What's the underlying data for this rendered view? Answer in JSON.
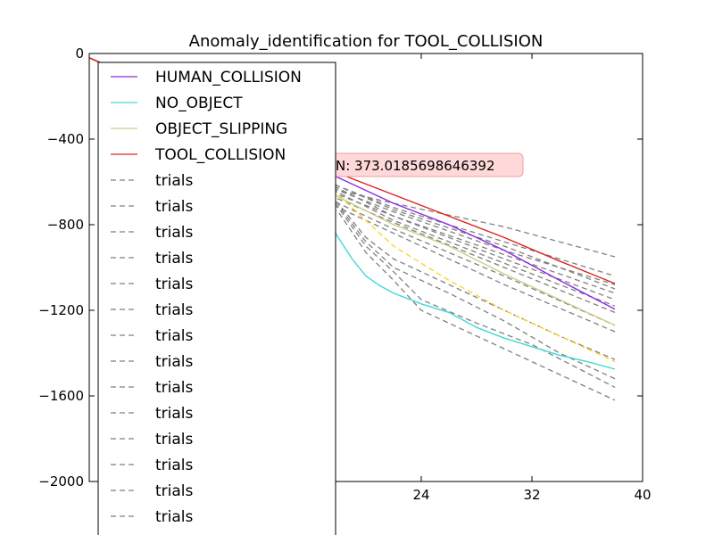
{
  "chart_data": {
    "type": "line",
    "title": "Anomaly_identification for TOOL_COLLISION",
    "xlabel": "",
    "ylabel": "",
    "xlim": [
      0,
      40
    ],
    "ylim": [
      -2000,
      0
    ],
    "xticks": [
      24,
      32,
      40
    ],
    "yticks": [
      0,
      -400,
      -800,
      -1200,
      -1600,
      -2000
    ],
    "grid": false,
    "legend_position": "upper-left",
    "annotation": "N: 373.0185698646392",
    "series": [
      {
        "name": "HUMAN_COLLISION",
        "color": "#8a2be2",
        "dashed": false,
        "x": [
          0,
          2,
          6,
          10,
          14,
          18,
          22,
          26,
          30,
          34,
          38
        ],
        "y": [
          -20,
          -80,
          -200,
          -330,
          -460,
          -580,
          -700,
          -800,
          -920,
          -1060,
          -1195
        ]
      },
      {
        "name": "NO_OBJECT",
        "color": "#40d8d8",
        "dashed": false,
        "x": [
          0,
          2,
          6,
          10,
          14,
          16,
          18,
          19,
          20,
          21,
          22,
          24,
          26,
          28,
          30,
          32,
          34,
          36,
          38
        ],
        "y": [
          -20,
          -80,
          -220,
          -380,
          -550,
          -650,
          -860,
          -960,
          -1040,
          -1085,
          -1120,
          -1170,
          -1210,
          -1280,
          -1330,
          -1370,
          -1410,
          -1440,
          -1475
        ]
      },
      {
        "name": "OBJECT_SLIPPING",
        "color": "#cccc8a",
        "dashed": false,
        "x": [
          0,
          2,
          6,
          10,
          14,
          18,
          22,
          26,
          30,
          34,
          38
        ],
        "y": [
          -20,
          -75,
          -210,
          -360,
          -520,
          -670,
          -800,
          -900,
          -1030,
          -1150,
          -1270
        ]
      },
      {
        "name": "TOOL_COLLISION",
        "color": "#e02020",
        "dashed": false,
        "x": [
          0,
          2,
          6,
          10,
          14,
          18,
          22,
          26,
          30,
          34,
          38
        ],
        "y": [
          -20,
          -75,
          -200,
          -320,
          -440,
          -560,
          -660,
          -760,
          -860,
          -970,
          -1075
        ]
      },
      {
        "name": "trials",
        "color": "#808080",
        "dashed": true,
        "x": [
          0,
          2,
          10,
          18,
          22,
          30,
          38
        ],
        "y": [
          -20,
          -80,
          -330,
          -640,
          -700,
          -810,
          -950
        ]
      },
      {
        "name": "trials",
        "color": "#808080",
        "dashed": true,
        "x": [
          0,
          2,
          10,
          18,
          22,
          30,
          38
        ],
        "y": [
          -20,
          -80,
          -340,
          -620,
          -720,
          -880,
          -1040
        ]
      },
      {
        "name": "trials",
        "color": "#808080",
        "dashed": true,
        "x": [
          0,
          2,
          10,
          18,
          22,
          30,
          38
        ],
        "y": [
          -20,
          -80,
          -350,
          -640,
          -740,
          -920,
          -1080
        ]
      },
      {
        "name": "trials",
        "color": "#808080",
        "dashed": true,
        "x": [
          0,
          2,
          10,
          18,
          22,
          30,
          38
        ],
        "y": [
          -20,
          -80,
          -360,
          -660,
          -760,
          -940,
          -1120
        ]
      },
      {
        "name": "trials",
        "color": "#808080",
        "dashed": true,
        "x": [
          0,
          2,
          10,
          18,
          22,
          30,
          38
        ],
        "y": [
          -20,
          -80,
          -370,
          -680,
          -790,
          -1000,
          -1210
        ]
      },
      {
        "name": "trials",
        "color": "#808080",
        "dashed": true,
        "x": [
          0,
          2,
          10,
          18,
          22,
          30,
          38
        ],
        "y": [
          -20,
          -80,
          -380,
          -700,
          -820,
          -1040,
          -1270
        ]
      },
      {
        "name": "trials",
        "color": "#808080",
        "dashed": true,
        "x": [
          0,
          2,
          10,
          18,
          22,
          30,
          38
        ],
        "y": [
          -20,
          -80,
          -390,
          -720,
          -840,
          -1080,
          -1300
        ]
      },
      {
        "name": "trials",
        "color": "#808080",
        "dashed": true,
        "x": [
          0,
          2,
          10,
          18,
          20,
          22,
          26,
          30,
          34,
          38
        ],
        "y": [
          -20,
          -80,
          -400,
          -700,
          -860,
          -960,
          -1080,
          -1200,
          -1320,
          -1430
        ]
      },
      {
        "name": "trials",
        "color": "#808080",
        "dashed": true,
        "x": [
          0,
          2,
          10,
          18,
          20,
          22,
          26,
          30,
          34,
          38
        ],
        "y": [
          -20,
          -80,
          -400,
          -710,
          -880,
          -1000,
          -1120,
          -1250,
          -1400,
          -1520
        ]
      },
      {
        "name": "trials",
        "color": "#808080",
        "dashed": true,
        "x": [
          0,
          2,
          10,
          18,
          20,
          22,
          24,
          28,
          32,
          38
        ],
        "y": [
          -20,
          -80,
          -410,
          -720,
          -900,
          -1020,
          -1150,
          -1260,
          -1360,
          -1560
        ]
      },
      {
        "name": "trials",
        "color": "#808080",
        "dashed": true,
        "x": [
          0,
          2,
          10,
          18,
          20,
          22,
          24,
          28,
          32,
          38
        ],
        "y": [
          -20,
          -80,
          -420,
          -740,
          -930,
          -1060,
          -1200,
          -1320,
          -1440,
          -1620
        ]
      },
      {
        "name": "trials",
        "color": "#808080",
        "dashed": true,
        "x": [
          0,
          2,
          10,
          18,
          22,
          30,
          38
        ],
        "y": [
          -20,
          -80,
          -360,
          -650,
          -780,
          -980,
          -1180
        ]
      },
      {
        "name": "trials",
        "color": "#808080",
        "dashed": true,
        "x": [
          0,
          2,
          10,
          18,
          22,
          30,
          38
        ],
        "y": [
          -20,
          -80,
          -350,
          -630,
          -760,
          -960,
          -1150
        ]
      },
      {
        "name": "trials",
        "color": "#808080",
        "dashed": true,
        "x": [
          0,
          2,
          10,
          18,
          22,
          30,
          38
        ],
        "y": [
          -20,
          -80,
          -340,
          -620,
          -730,
          -900,
          -1100
        ]
      },
      {
        "name": "",
        "color": "#ffd020",
        "dashed": true,
        "x": [
          0,
          2,
          10,
          18,
          22,
          26,
          30,
          34,
          38
        ],
        "y": [
          -20,
          -75,
          -350,
          -660,
          -900,
          -1060,
          -1200,
          -1320,
          -1440
        ]
      }
    ]
  }
}
